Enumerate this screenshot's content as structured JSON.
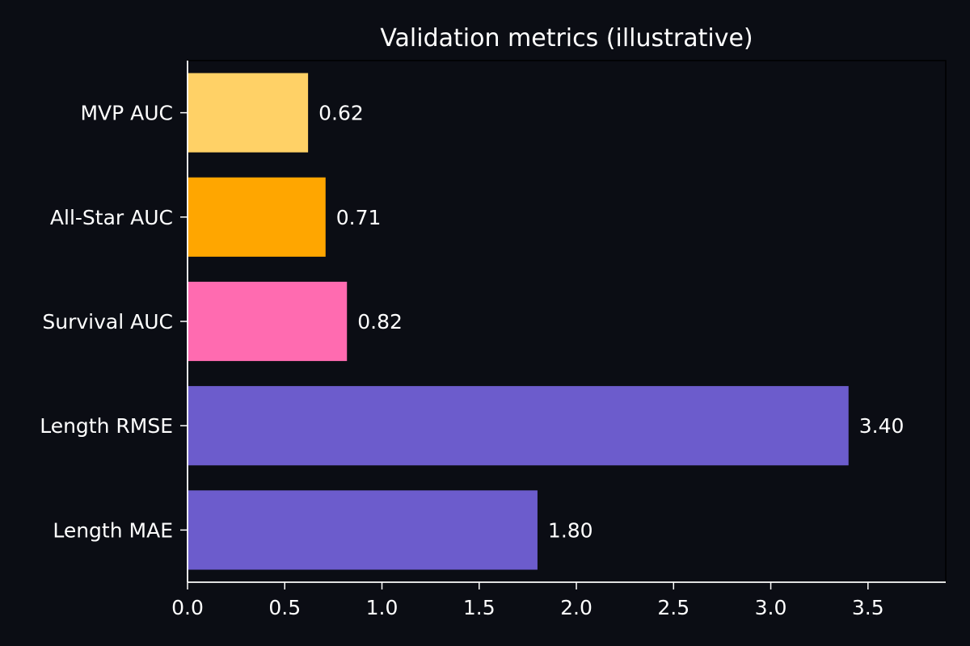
{
  "chart_data": {
    "type": "bar",
    "orientation": "horizontal",
    "title": "Validation metrics (illustrative)",
    "xlabel": "",
    "ylabel": "",
    "categories": [
      "MVP AUC",
      "All-Star AUC",
      "Survival AUC",
      "Length RMSE",
      "Length MAE"
    ],
    "values": [
      0.62,
      0.71,
      0.82,
      3.4,
      1.8
    ],
    "data_labels": [
      "0.62",
      "0.71",
      "0.82",
      "3.40",
      "1.80"
    ],
    "bar_colors": [
      "#ffd166",
      "#ffa600",
      "#ff6bb0",
      "#6c5ccc",
      "#6c5ccc"
    ],
    "xlim": [
      0,
      3.9
    ],
    "x_ticks": [
      0.0,
      0.5,
      1.0,
      1.5,
      2.0,
      2.5,
      3.0,
      3.5
    ],
    "x_tick_labels": [
      "0.0",
      "0.5",
      "1.0",
      "1.5",
      "2.0",
      "2.5",
      "3.0",
      "3.5"
    ],
    "grid": false,
    "legend": "none",
    "background_color": "#0b0d14",
    "text_color": "#ffffff"
  }
}
